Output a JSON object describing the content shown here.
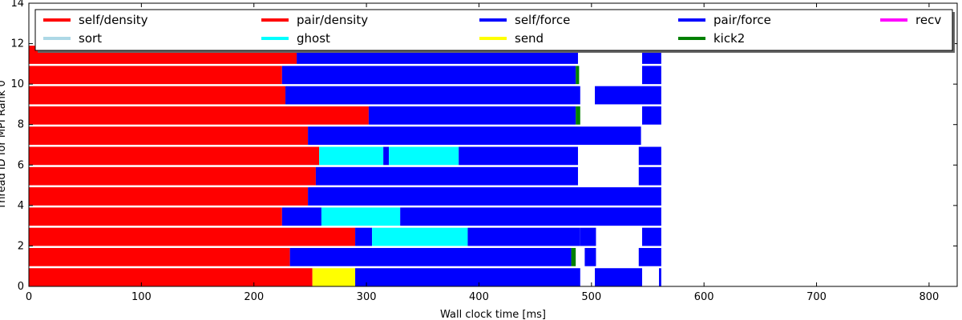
{
  "chart_data": {
    "type": "bar",
    "subtype": "horizontal-task-timeline",
    "title": "",
    "xlabel": "Wall clock time [ms]",
    "ylabel": "Thread ID for MPI Rank 0",
    "xlim": [
      0,
      825
    ],
    "ylim": [
      0,
      14
    ],
    "xticks": [
      0,
      100,
      200,
      300,
      400,
      500,
      600,
      700,
      800
    ],
    "yticks": [
      0,
      2,
      4,
      6,
      8,
      10,
      12,
      14
    ],
    "grid": false,
    "legend_position": "top",
    "series": [
      {
        "name": "self/density",
        "color": "#ff0000"
      },
      {
        "name": "pair/density",
        "color": "#ff0000"
      },
      {
        "name": "self/force",
        "color": "#0000ff"
      },
      {
        "name": "pair/force",
        "color": "#0000ff"
      },
      {
        "name": "recv",
        "color": "#ff00ff"
      },
      {
        "name": "sort",
        "color": "#add8e6"
      },
      {
        "name": "ghost",
        "color": "#00ffff"
      },
      {
        "name": "send",
        "color": "#ffff00"
      },
      {
        "name": "kick2",
        "color": "#008000"
      }
    ],
    "threads": [
      {
        "y": 0,
        "segments": [
          [
            0,
            252,
            "#ff0000"
          ],
          [
            252,
            290,
            "#ffff00"
          ],
          [
            290,
            490,
            "#0000ff"
          ],
          [
            503,
            545,
            "#0000ff"
          ],
          [
            560,
            562,
            "#0000ff"
          ]
        ]
      },
      {
        "y": 1,
        "segments": [
          [
            0,
            232,
            "#ff0000"
          ],
          [
            232,
            482,
            "#0000ff"
          ],
          [
            482,
            486,
            "#008000"
          ],
          [
            494,
            504,
            "#0000ff"
          ],
          [
            542,
            562,
            "#0000ff"
          ]
        ]
      },
      {
        "y": 2,
        "segments": [
          [
            0,
            290,
            "#ff0000"
          ],
          [
            290,
            305,
            "#0000ff"
          ],
          [
            305,
            390,
            "#00ffff"
          ],
          [
            390,
            490,
            "#0000ff"
          ],
          [
            490,
            504,
            "#0000ff"
          ],
          [
            545,
            562,
            "#0000ff"
          ]
        ]
      },
      {
        "y": 3,
        "segments": [
          [
            0,
            225,
            "#ff0000"
          ],
          [
            225,
            260,
            "#0000ff"
          ],
          [
            260,
            330,
            "#00ffff"
          ],
          [
            330,
            562,
            "#0000ff"
          ]
        ]
      },
      {
        "y": 4,
        "segments": [
          [
            0,
            248,
            "#ff0000"
          ],
          [
            248,
            562,
            "#0000ff"
          ]
        ]
      },
      {
        "y": 5,
        "segments": [
          [
            0,
            255,
            "#ff0000"
          ],
          [
            255,
            488,
            "#0000ff"
          ],
          [
            542,
            562,
            "#0000ff"
          ]
        ]
      },
      {
        "y": 6,
        "segments": [
          [
            0,
            258,
            "#ff0000"
          ],
          [
            258,
            315,
            "#00ffff"
          ],
          [
            315,
            320,
            "#0000ff"
          ],
          [
            320,
            382,
            "#00ffff"
          ],
          [
            382,
            488,
            "#0000ff"
          ],
          [
            542,
            562,
            "#0000ff"
          ]
        ]
      },
      {
        "y": 7,
        "segments": [
          [
            0,
            248,
            "#ff0000"
          ],
          [
            248,
            544,
            "#0000ff"
          ]
        ]
      },
      {
        "y": 8,
        "segments": [
          [
            0,
            302,
            "#ff0000"
          ],
          [
            302,
            486,
            "#0000ff"
          ],
          [
            486,
            490,
            "#008000"
          ],
          [
            545,
            562,
            "#0000ff"
          ]
        ]
      },
      {
        "y": 9,
        "segments": [
          [
            0,
            228,
            "#ff0000"
          ],
          [
            228,
            490,
            "#0000ff"
          ],
          [
            503,
            562,
            "#0000ff"
          ]
        ]
      },
      {
        "y": 10,
        "segments": [
          [
            0,
            225,
            "#ff0000"
          ],
          [
            225,
            486,
            "#0000ff"
          ],
          [
            486,
            489,
            "#008000"
          ],
          [
            545,
            562,
            "#0000ff"
          ]
        ]
      },
      {
        "y": 11,
        "segments": [
          [
            0,
            238,
            "#ff0000"
          ],
          [
            238,
            488,
            "#0000ff"
          ],
          [
            545,
            562,
            "#0000ff"
          ]
        ]
      }
    ]
  }
}
